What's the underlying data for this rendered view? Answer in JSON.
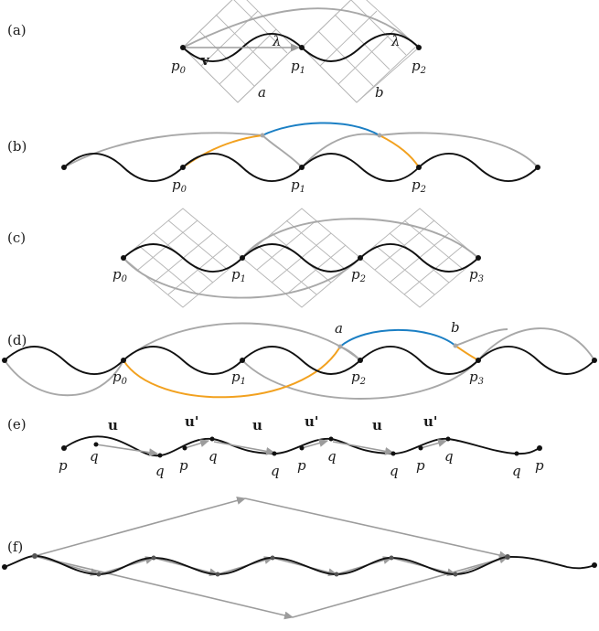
{
  "panels": {
    "a": {
      "label": "(a)",
      "points": [
        "p0",
        "p1",
        "p2"
      ],
      "vector_label": "v",
      "lambda_label": "λ",
      "region_labels": [
        "a",
        "b"
      ]
    },
    "b": {
      "label": "(b)",
      "points": [
        "p0",
        "p1",
        "p2"
      ]
    },
    "c": {
      "label": "(c)",
      "points": [
        "p0",
        "p1",
        "p2",
        "p3"
      ]
    },
    "d": {
      "label": "(d)",
      "points": [
        "p0",
        "p1",
        "p2",
        "p3"
      ],
      "marker_labels": [
        "a",
        "b"
      ]
    },
    "e": {
      "label": "(e)",
      "labels": [
        "p",
        "q",
        "q",
        "p",
        "q",
        "q",
        "p",
        "q",
        "q",
        "p",
        "q",
        "q",
        "p"
      ],
      "vector_labels": [
        "u",
        "u'",
        "u",
        "u'",
        "u",
        "u'"
      ]
    },
    "f": {
      "label": "(f)"
    }
  },
  "colors": {
    "curve": "#111111",
    "lifted_curve": "#a8a8a8",
    "highlight_orange": "#f2a11f",
    "highlight_blue": "#1b7fc4",
    "grid": "#b5b5b5",
    "arrow": "#9c9c9c"
  }
}
